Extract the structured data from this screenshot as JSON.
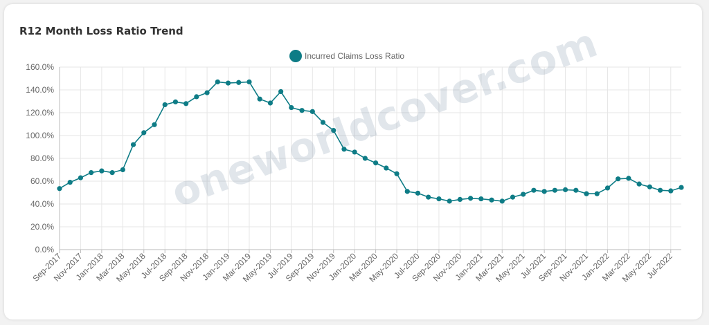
{
  "card": {
    "title": "R12 Month Loss Ratio Trend"
  },
  "watermark": "oneworldcover.com",
  "colors": {
    "series": "#0e7c86",
    "grid": "#e6e6e6",
    "axis": "#bbbbbb",
    "tick_text": "#666666"
  },
  "chart_data": {
    "type": "line",
    "title": "",
    "xlabel": "",
    "ylabel": "",
    "legend": "top-center",
    "grid": true,
    "ylim": [
      0,
      160
    ],
    "y_ticks": [
      "0.0%",
      "20.0%",
      "40.0%",
      "60.0%",
      "80.0%",
      "100.0%",
      "120.0%",
      "140.0%",
      "160.0%"
    ],
    "x_tick_labels": [
      "Sep-2017",
      "Nov-2017",
      "Jan-2018",
      "Mar-2018",
      "May-2018",
      "Jul-2018",
      "Sep-2018",
      "Nov-2018",
      "Jan-2019",
      "Mar-2019",
      "May-2019",
      "Jul-2019",
      "Sep-2019",
      "Nov-2019",
      "Jan-2020",
      "Mar-2020",
      "May-2020",
      "Jul-2020",
      "Sep-2020",
      "Nov-2020",
      "Jan-2021",
      "Mar-2021",
      "May-2021",
      "Jul-2021",
      "Sep-2021",
      "Nov-2021",
      "Jan-2022",
      "Mar-2022",
      "May-2022",
      "Jul-2022"
    ],
    "categories": [
      "Sep-2017",
      "Oct-2017",
      "Nov-2017",
      "Dec-2017",
      "Jan-2018",
      "Feb-2018",
      "Mar-2018",
      "Apr-2018",
      "May-2018",
      "Jun-2018",
      "Jul-2018",
      "Aug-2018",
      "Sep-2018",
      "Oct-2018",
      "Nov-2018",
      "Dec-2018",
      "Jan-2019",
      "Feb-2019",
      "Mar-2019",
      "Apr-2019",
      "May-2019",
      "Jun-2019",
      "Jul-2019",
      "Aug-2019",
      "Sep-2019",
      "Oct-2019",
      "Nov-2019",
      "Dec-2019",
      "Jan-2020",
      "Feb-2020",
      "Mar-2020",
      "Apr-2020",
      "May-2020",
      "Jun-2020",
      "Jul-2020",
      "Aug-2020",
      "Sep-2020",
      "Oct-2020",
      "Nov-2020",
      "Dec-2020",
      "Jan-2021",
      "Feb-2021",
      "Mar-2021",
      "Apr-2021",
      "May-2021",
      "Jun-2021",
      "Jul-2021",
      "Aug-2021",
      "Sep-2021",
      "Oct-2021",
      "Nov-2021",
      "Dec-2021",
      "Jan-2022",
      "Feb-2022",
      "Mar-2022",
      "Apr-2022",
      "May-2022",
      "Jun-2022",
      "Jul-2022",
      "Aug-2022"
    ],
    "series": [
      {
        "name": "Incurred Claims Loss Ratio",
        "values": [
          53.5,
          59,
          63,
          67.5,
          69,
          67.5,
          70,
          92,
          102.5,
          109.5,
          127,
          129.5,
          128,
          134,
          137.5,
          147,
          146,
          146.5,
          147,
          132,
          128.5,
          138.5,
          124.5,
          122,
          121,
          111.5,
          104.5,
          88,
          85.5,
          80,
          76,
          71.5,
          66.5,
          51,
          49.5,
          46,
          44.5,
          42.5,
          44,
          45,
          44.5,
          43.5,
          42.5,
          46,
          48.5,
          52,
          51,
          52,
          52.5,
          52,
          49,
          49,
          54,
          62,
          62.5,
          57.5,
          55,
          52,
          51.5,
          54.5
        ]
      }
    ]
  }
}
